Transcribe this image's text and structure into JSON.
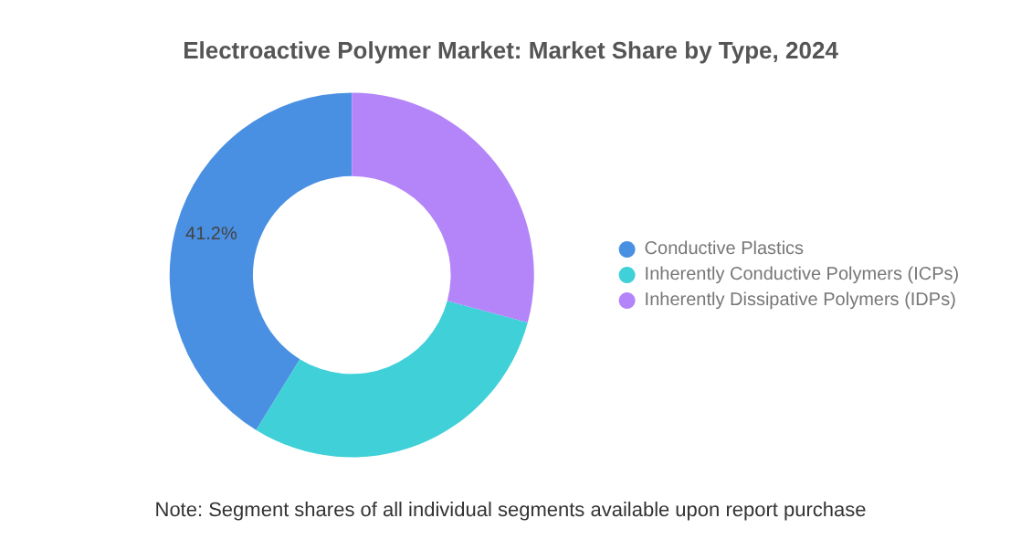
{
  "chart_data": {
    "type": "donut",
    "title": "Electroactive Polymer Market: Market Share by Type, 2024",
    "categories": [
      "Conductive Plastics",
      "Inherently Conductive Polymers (ICPs)",
      "Inherently Dissipative Polymers (IDPs)"
    ],
    "values": [
      41.2,
      29.6,
      29.2
    ],
    "colors": [
      "#4a90e2",
      "#3fd0d8",
      "#b385f8"
    ],
    "value_labels": [
      "41.2%",
      null,
      null
    ],
    "legend": "right",
    "annotations": [
      "Note: Segment shares of all individual segments available upon report purchase"
    ]
  }
}
